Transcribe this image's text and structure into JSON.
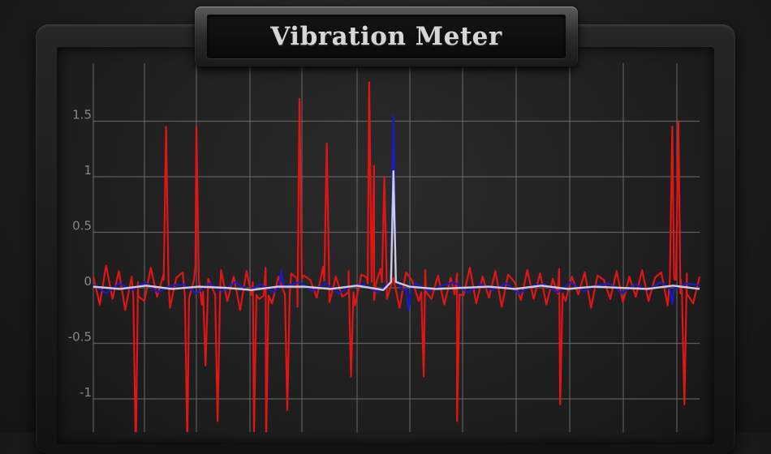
{
  "app": {
    "title": "Vibration Meter"
  },
  "colors": {
    "background": "#1c1c1c",
    "grid": "#6e6e6e",
    "tick_label": "#888888",
    "series_x": "#e01515",
    "series_y": "#1a1acc",
    "series_z": "#ccccdd"
  },
  "chart_data": {
    "type": "line",
    "title": "",
    "xlabel": "",
    "ylabel": "",
    "ylim": [
      -1.25,
      1.95
    ],
    "yticks": [
      1.5,
      1,
      0.5,
      0,
      -0.5,
      -1
    ],
    "ytick_labels": [
      "1.5",
      "1",
      "0.5",
      "0",
      "-0.5",
      "-1"
    ],
    "grid": true,
    "legend": "none",
    "series": [
      {
        "color": "#e01515",
        "spikes": [
          [
            0.07,
            -1.5
          ],
          [
            0.12,
            1.45
          ],
          [
            0.155,
            -1.4
          ],
          [
            0.17,
            1.45
          ],
          [
            0.185,
            -0.7
          ],
          [
            0.205,
            -1.2
          ],
          [
            0.265,
            -1.3
          ],
          [
            0.285,
            -1.4
          ],
          [
            0.32,
            -1.1
          ],
          [
            0.34,
            1.7
          ],
          [
            0.385,
            1.3
          ],
          [
            0.425,
            -0.8
          ],
          [
            0.455,
            1.85
          ],
          [
            0.463,
            1.1
          ],
          [
            0.48,
            1.0
          ],
          [
            0.545,
            -0.8
          ],
          [
            0.6,
            -1.2
          ],
          [
            0.77,
            -1.05
          ],
          [
            0.955,
            1.45
          ],
          [
            0.965,
            1.5
          ],
          [
            0.975,
            -1.05
          ]
        ],
        "noise": [
          0.1,
          -0.15,
          0.2,
          -0.1,
          0.15,
          -0.2,
          0.1,
          0.05,
          -0.12,
          0.18,
          -0.08,
          0.12,
          -0.18,
          0.09,
          0.14,
          -0.1,
          0.2,
          -0.15,
          0.08,
          -0.05,
          0.16,
          -0.12,
          0.1,
          -0.2,
          0.15,
          0.05,
          -0.1,
          0.18,
          -0.14,
          0.1,
          -0.06,
          0.13,
          -0.17,
          0.11,
          0.07,
          -0.09,
          0.19,
          -0.13,
          0.1,
          -0.08,
          0.15,
          -0.16,
          0.12,
          0.04,
          -0.11,
          0.17,
          -0.1,
          0.09,
          -0.18,
          0.14,
          0.06,
          -0.12,
          0.16,
          -0.1,
          0.11,
          -0.15,
          0.09,
          0.13,
          -0.07,
          0.18,
          -0.14,
          0.1,
          -0.09,
          0.15,
          -0.17,
          0.12,
          0.05,
          -0.11,
          0.16,
          -0.1,
          0.13,
          -0.15,
          0.08,
          0.17,
          -0.12,
          0.1,
          -0.06,
          0.14,
          -0.18,
          0.11,
          0.07,
          -0.1,
          0.15,
          -0.13,
          0.1,
          -0.08,
          0.16,
          -0.12,
          0.09,
          0.14,
          -0.16,
          0.11,
          -0.05,
          0.13,
          -0.14,
          0.1
        ]
      },
      {
        "color": "#1a1acc",
        "spikes": [
          [
            0.495,
            1.55
          ],
          [
            0.31,
            0.15
          ],
          [
            0.52,
            -0.2
          ],
          [
            0.955,
            -0.15
          ]
        ],
        "noise": [
          0.03,
          -0.05,
          0.04,
          -0.02,
          0.05,
          -0.04,
          0.02,
          0.03,
          -0.05,
          0.04,
          -0.03,
          0.05,
          -0.02,
          0.03,
          -0.04,
          0.02,
          0.05,
          -0.03,
          0.04,
          -0.05,
          0.02,
          0.03,
          -0.04,
          0.05,
          -0.02,
          0.04,
          -0.03,
          0.02,
          0.05,
          -0.04,
          0.03,
          -0.02,
          0.04,
          -0.05,
          0.02,
          0.03,
          -0.04,
          0.05,
          -0.03,
          0.02,
          0.04,
          -0.05,
          0.03,
          -0.02,
          0.05,
          -0.03,
          0.04,
          0.02
        ]
      },
      {
        "color": "#ccccdd",
        "spikes": [
          [
            0.495,
            1.05
          ]
        ],
        "noise": [
          0.01,
          -0.01,
          0.02,
          -0.01,
          0.01,
          0.0,
          -0.02,
          0.01,
          0.01,
          -0.01,
          0.02,
          -0.02,
          0.01,
          -0.01,
          0.0,
          0.01,
          -0.01,
          0.02,
          -0.01,
          0.01,
          0.0,
          -0.01,
          0.02,
          -0.01
        ]
      }
    ]
  }
}
